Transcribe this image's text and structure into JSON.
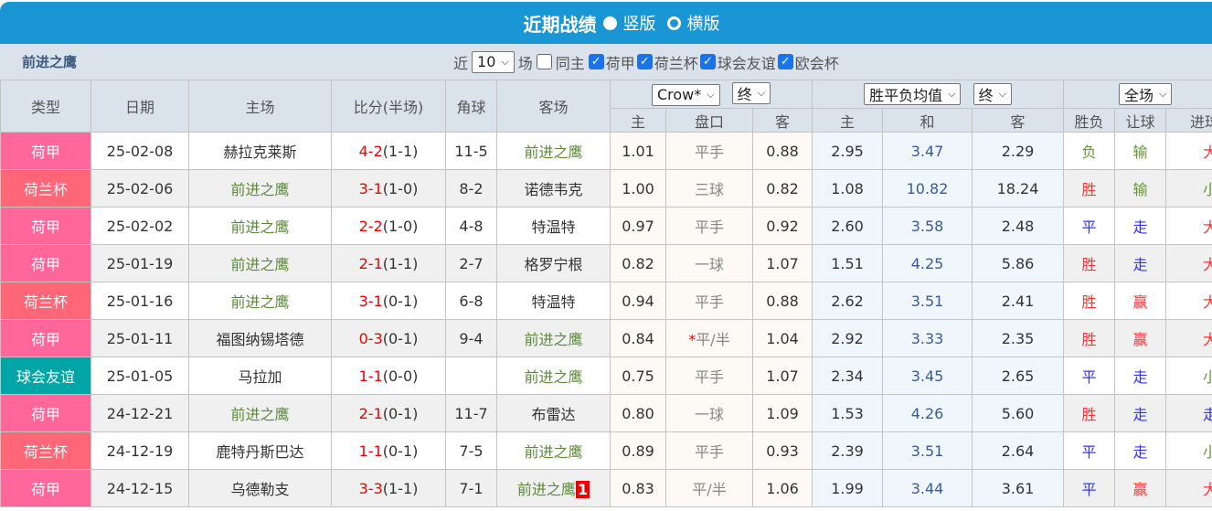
{
  "title": {
    "text": "近期战绩",
    "opt1": "竖版",
    "opt2": "横版"
  },
  "filter": {
    "team": "前进之鹰",
    "near": "近",
    "count": "10",
    "games": "场",
    "same_home": "同主",
    "leagues": [
      "荷甲",
      "荷兰杯",
      "球会友谊",
      "欧会杯"
    ]
  },
  "header": {
    "type": "类型",
    "date": "日期",
    "home": "主场",
    "score": "比分(半场)",
    "corner": "角球",
    "away": "客场",
    "company": "Crow*",
    "state1": "终",
    "odds_type": "胜平负均值",
    "state2": "终",
    "period": "全场",
    "sub": [
      "主",
      "盘口",
      "客",
      "主",
      "和",
      "客",
      "胜负",
      "让球",
      "进球"
    ]
  },
  "colors": {
    "荷甲": "#ff6699",
    "荷兰杯": "#ff6677",
    "球会友谊": "#00a6a6",
    "win": "#ff3333",
    "draw": "#3333ff",
    "lose": "#669933"
  },
  "rows": [
    {
      "type": "荷甲",
      "date": "25-02-08",
      "home": "赫拉克莱斯",
      "ft": "4-2",
      "ht": "(1-1)",
      "corner": "11-5",
      "away": "前进之鹰",
      "ah_h": "1.01",
      "line": "平手",
      "ah_a": "0.88",
      "eu_h": "2.95",
      "eu_d": "3.47",
      "eu_a": "2.29",
      "r1": "负",
      "r2": "输",
      "r3": "大"
    },
    {
      "type": "荷兰杯",
      "date": "25-02-06",
      "home": "前进之鹰",
      "ft": "3-1",
      "ht": "(1-0)",
      "corner": "8-2",
      "away": "诺德韦克",
      "ah_h": "1.00",
      "line": "三球",
      "ah_a": "0.82",
      "eu_h": "1.08",
      "eu_d": "10.82",
      "eu_a": "18.24",
      "r1": "胜",
      "r2": "输",
      "r3": "小"
    },
    {
      "type": "荷甲",
      "date": "25-02-02",
      "home": "前进之鹰",
      "ft": "2-2",
      "ht": "(1-0)",
      "corner": "4-8",
      "away": "特温特",
      "ah_h": "0.97",
      "line": "平手",
      "ah_a": "0.92",
      "eu_h": "2.60",
      "eu_d": "3.58",
      "eu_a": "2.48",
      "r1": "平",
      "r2": "走",
      "r3": "大"
    },
    {
      "type": "荷甲",
      "date": "25-01-19",
      "home": "前进之鹰",
      "ft": "2-1",
      "ht": "(1-1)",
      "corner": "2-7",
      "away": "格罗宁根",
      "ah_h": "0.82",
      "line": "一球",
      "ah_a": "1.07",
      "eu_h": "1.51",
      "eu_d": "4.25",
      "eu_a": "5.86",
      "r1": "胜",
      "r2": "走",
      "r3": "大"
    },
    {
      "type": "荷兰杯",
      "date": "25-01-16",
      "home": "前进之鹰",
      "ft": "3-1",
      "ht": "(0-1)",
      "corner": "6-8",
      "away": "特温特",
      "ah_h": "0.94",
      "line": "平手",
      "ah_a": "0.88",
      "eu_h": "2.62",
      "eu_d": "3.51",
      "eu_a": "2.41",
      "r1": "胜",
      "r2": "赢",
      "r3": "大"
    },
    {
      "type": "荷甲",
      "date": "25-01-11",
      "home": "福图纳锡塔德",
      "ft": "0-3",
      "ht": "(0-1)",
      "corner": "9-4",
      "away": "前进之鹰",
      "ah_h": "0.84",
      "star": "*",
      "line": "平/半",
      "ah_a": "1.04",
      "eu_h": "2.92",
      "eu_d": "3.33",
      "eu_a": "2.35",
      "r1": "胜",
      "r2": "赢",
      "r3": "大"
    },
    {
      "type": "球会友谊",
      "date": "25-01-05",
      "home": "马拉加",
      "ft": "1-1",
      "ht": "(0-0)",
      "corner": "",
      "away": "前进之鹰",
      "ah_h": "0.75",
      "line": "平手",
      "ah_a": "1.07",
      "eu_h": "2.34",
      "eu_d": "3.45",
      "eu_a": "2.65",
      "r1": "平",
      "r2": "走",
      "r3": "小"
    },
    {
      "type": "荷甲",
      "date": "24-12-21",
      "home": "前进之鹰",
      "ft": "2-1",
      "ht": "(0-1)",
      "corner": "11-7",
      "away": "布雷达",
      "ah_h": "0.80",
      "line": "一球",
      "ah_a": "1.09",
      "eu_h": "1.53",
      "eu_d": "4.26",
      "eu_a": "5.60",
      "r1": "胜",
      "r2": "走",
      "r3": "走"
    },
    {
      "type": "荷兰杯",
      "date": "24-12-19",
      "home": "鹿特丹斯巴达",
      "ft": "1-1",
      "ht": "(0-1)",
      "corner": "7-5",
      "away": "前进之鹰",
      "ah_h": "0.89",
      "line": "平手",
      "ah_a": "0.93",
      "eu_h": "2.39",
      "eu_d": "3.51",
      "eu_a": "2.64",
      "r1": "平",
      "r2": "走",
      "r3": "小"
    },
    {
      "type": "荷甲",
      "date": "24-12-15",
      "home": "乌德勒支",
      "ft": "3-3",
      "ht": "(1-1)",
      "corner": "7-1",
      "away": "前进之鹰",
      "away_flag": "1",
      "ah_h": "0.83",
      "line": "平/半",
      "ah_a": "1.06",
      "eu_h": "1.99",
      "eu_d": "3.44",
      "eu_a": "3.61",
      "r1": "平",
      "r2": "赢",
      "r3": "大"
    }
  ]
}
